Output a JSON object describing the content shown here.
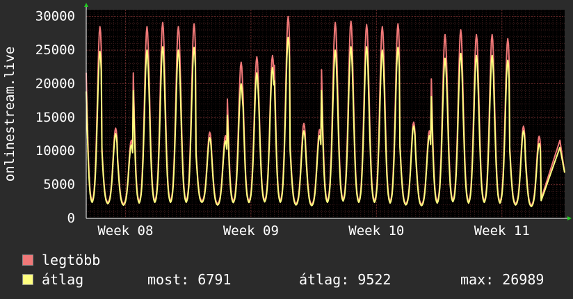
{
  "chart_data": {
    "type": "area",
    "ylabel": "onlinestream.live",
    "ylim": [
      0,
      31000
    ],
    "y_ticks": [
      0,
      5000,
      10000,
      15000,
      20000,
      25000,
      30000
    ],
    "x_range_days": [
      0,
      30.5
    ],
    "week_labels": [
      {
        "label": "Week 08",
        "day": 6.5
      },
      {
        "label": "Week 09",
        "day": 14.5
      },
      {
        "label": "Week 10",
        "day": 22.5
      },
      {
        "label": "Week 11",
        "day": 30.5
      }
    ],
    "series": [
      {
        "name": "legtöbb",
        "color": "#f07878",
        "daily_peaks": [
          28500,
          13400,
          11600,
          28500,
          29100,
          28500,
          28900,
          12800,
          12300,
          23200,
          24000,
          24200,
          30000,
          14100,
          13200,
          29100,
          29300,
          28800,
          28500,
          28900,
          14300,
          13000,
          27300,
          28000,
          27300,
          27300,
          26700,
          13700,
          12200
        ],
        "daily_lows": [
          2400,
          2300,
          2100,
          2300,
          2400,
          2400,
          2400,
          2500,
          2100,
          2400,
          2400,
          2500,
          2400,
          2100,
          2000,
          2400,
          2600,
          2400,
          2400,
          2300,
          2100,
          2000,
          2300,
          2500,
          2300,
          2400,
          2300,
          2100,
          1900
        ],
        "last_value": 6791
      },
      {
        "name": "átlag",
        "color": "#ffff80",
        "daily_peaks": [
          24800,
          12600,
          10900,
          25000,
          25500,
          25000,
          25400,
          12000,
          11500,
          20000,
          21600,
          22400,
          26900,
          13000,
          12300,
          25000,
          25500,
          25500,
          25000,
          25400,
          13700,
          12300,
          23800,
          24500,
          24200,
          24200,
          23500,
          13000,
          11100
        ],
        "daily_lows": [
          2200,
          2100,
          1900,
          2100,
          2200,
          2200,
          2200,
          2300,
          1900,
          2200,
          2200,
          2300,
          2200,
          1900,
          1800,
          2200,
          2400,
          2200,
          2200,
          2100,
          1900,
          1800,
          2100,
          2300,
          2100,
          2200,
          2100,
          1900,
          1700
        ],
        "last_value": 6791
      }
    ]
  },
  "legend": {
    "max_label": "legtöbb",
    "avg_label": "átlag",
    "max_color": "#f07878",
    "avg_color": "#ffff80"
  },
  "stats": {
    "current": "most: 6791",
    "average": "átlag: 9522",
    "max": "max: 26989"
  }
}
